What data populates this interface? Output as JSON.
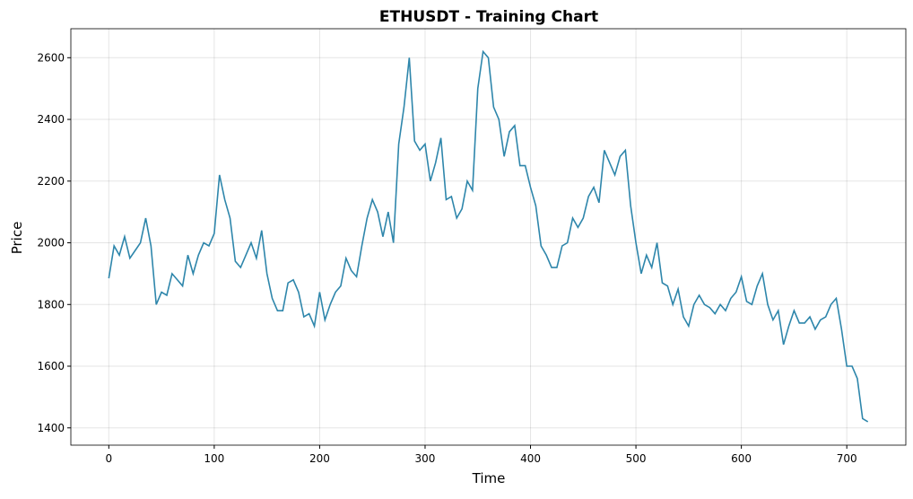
{
  "chart_data": {
    "type": "line",
    "title": "ETHUSDT - Training Chart",
    "x_label": "Time",
    "y_label": "Price",
    "x": [
      0,
      5,
      10,
      15,
      20,
      25,
      30,
      35,
      40,
      45,
      50,
      55,
      60,
      65,
      70,
      75,
      80,
      85,
      90,
      95,
      100,
      105,
      110,
      115,
      120,
      125,
      130,
      135,
      140,
      145,
      150,
      155,
      160,
      165,
      170,
      175,
      180,
      185,
      190,
      195,
      200,
      205,
      210,
      215,
      220,
      225,
      230,
      235,
      240,
      245,
      250,
      255,
      260,
      265,
      270,
      275,
      280,
      285,
      290,
      295,
      300,
      305,
      310,
      315,
      320,
      325,
      330,
      335,
      340,
      345,
      350,
      355,
      360,
      365,
      370,
      375,
      380,
      385,
      390,
      395,
      400,
      405,
      410,
      415,
      420,
      425,
      430,
      435,
      440,
      445,
      450,
      455,
      460,
      465,
      470,
      475,
      480,
      485,
      490,
      495,
      500,
      505,
      510,
      515,
      520,
      525,
      530,
      535,
      540,
      545,
      550,
      555,
      560,
      565,
      570,
      575,
      580,
      585,
      590,
      595,
      600,
      605,
      610,
      615,
      620,
      625,
      630,
      635,
      640,
      645,
      650,
      655,
      660,
      665,
      670,
      675,
      680,
      685,
      690,
      695,
      700,
      705,
      710,
      715,
      720
    ],
    "series": [
      {
        "name": "ETHUSDT",
        "color": "#2e86ab",
        "values": [
          1885,
          1990,
          1960,
          2020,
          1950,
          1975,
          2000,
          2080,
          1990,
          1800,
          1840,
          1830,
          1900,
          1880,
          1860,
          1960,
          1900,
          1960,
          2000,
          1990,
          2030,
          2220,
          2140,
          2080,
          1940,
          1920,
          1960,
          2000,
          1950,
          2040,
          1900,
          1820,
          1780,
          1780,
          1870,
          1880,
          1840,
          1760,
          1770,
          1730,
          1840,
          1750,
          1800,
          1840,
          1860,
          1950,
          1910,
          1890,
          1990,
          2080,
          2140,
          2100,
          2020,
          2100,
          2000,
          2320,
          2440,
          2600,
          2330,
          2300,
          2320,
          2200,
          2260,
          2340,
          2140,
          2150,
          2080,
          2110,
          2200,
          2170,
          2500,
          2620,
          2600,
          2440,
          2400,
          2280,
          2360,
          2380,
          2250,
          2250,
          2180,
          2120,
          1990,
          1960,
          1920,
          1920,
          1990,
          2000,
          2080,
          2050,
          2080,
          2150,
          2180,
          2130,
          2300,
          2260,
          2220,
          2280,
          2300,
          2120,
          2000,
          1900,
          1960,
          1920,
          2000,
          1870,
          1860,
          1800,
          1850,
          1760,
          1730,
          1800,
          1830,
          1800,
          1790,
          1770,
          1800,
          1780,
          1820,
          1840,
          1890,
          1810,
          1800,
          1860,
          1900,
          1800,
          1750,
          1780,
          1670,
          1730,
          1780,
          1740,
          1740,
          1760,
          1720,
          1750,
          1760,
          1800,
          1820,
          1720,
          1600,
          1600,
          1560,
          1430,
          1420
        ]
      }
    ],
    "xlim": [
      -36,
      756
    ],
    "ylim": [
      1344,
      2694
    ],
    "xticks": [
      0,
      100,
      200,
      300,
      400,
      500,
      600,
      700
    ],
    "yticks": [
      1400,
      1600,
      1800,
      2000,
      2200,
      2400,
      2600
    ],
    "grid": true
  }
}
